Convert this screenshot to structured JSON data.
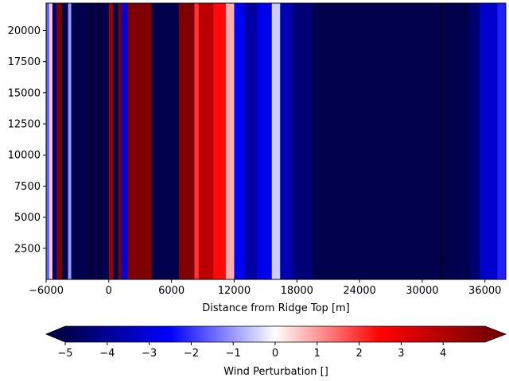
{
  "chart_data": [
    {
      "type": "heatmap",
      "title": "",
      "xlabel": "Distance from Ridge Top [m]",
      "ylabel": "",
      "xlim": [
        -6000,
        38000
      ],
      "ylim": [
        0,
        22200
      ],
      "x_ticks": [
        -6000,
        0,
        6000,
        12000,
        18000,
        24000,
        30000,
        36000
      ],
      "x_tick_labels": [
        "−6000",
        "0",
        "6000",
        "12000",
        "18000",
        "24000",
        "30000",
        "36000"
      ],
      "y_ticks": [
        2500,
        5000,
        7500,
        10000,
        12500,
        15000,
        17500,
        20000
      ],
      "y_tick_labels": [
        "2500",
        "5000",
        "7500",
        "10000",
        "12500",
        "15000",
        "17500",
        "20000"
      ],
      "colormap": "seismic",
      "colormap_stops": [
        "#00004c",
        "#0000ff",
        "#ffffff",
        "#ff0000",
        "#7f0000"
      ],
      "value_range": [
        -5,
        5
      ],
      "pattern": "vertical bands (wind perturbation nearly constant with height)",
      "bands": [
        {
          "x_start": -6000,
          "x_end": -5700,
          "value": -1.5
        },
        {
          "x_start": -5700,
          "x_end": -5400,
          "value": 0.5
        },
        {
          "x_start": -5400,
          "x_end": -5000,
          "value": -4.5
        },
        {
          "x_start": -5000,
          "x_end": -4500,
          "value": 5
        },
        {
          "x_start": -4500,
          "x_end": -3900,
          "value": -5
        },
        {
          "x_start": -3900,
          "x_end": -3600,
          "value": -1
        },
        {
          "x_start": -3600,
          "x_end": -1700,
          "value": -5
        },
        {
          "x_start": -1700,
          "x_end": -1600,
          "value": -6
        },
        {
          "x_start": -1600,
          "x_end": -1000,
          "value": -5
        },
        {
          "x_start": -1000,
          "x_end": -900,
          "value": -6
        },
        {
          "x_start": -900,
          "x_end": 0,
          "value": -5
        },
        {
          "x_start": 0,
          "x_end": 400,
          "value": 4.5
        },
        {
          "x_start": 400,
          "x_end": 900,
          "value": -5
        },
        {
          "x_start": 900,
          "x_end": 1200,
          "value": 5
        },
        {
          "x_start": 1200,
          "x_end": 1800,
          "value": -3
        },
        {
          "x_start": 1800,
          "x_end": 4100,
          "value": 5
        },
        {
          "x_start": 4100,
          "x_end": 6700,
          "value": -5
        },
        {
          "x_start": 6700,
          "x_end": 8200,
          "value": 5
        },
        {
          "x_start": 8200,
          "x_end": 8600,
          "value": 2
        },
        {
          "x_start": 8600,
          "x_end": 10000,
          "value": 3.8
        },
        {
          "x_start": 10000,
          "x_end": 11200,
          "value": 2.4
        },
        {
          "x_start": 11200,
          "x_end": 12000,
          "value": 0.8
        },
        {
          "x_start": 12000,
          "x_end": 13000,
          "value": -2.6
        },
        {
          "x_start": 13000,
          "x_end": 14200,
          "value": -3.8
        },
        {
          "x_start": 14200,
          "x_end": 15600,
          "value": -2.8
        },
        {
          "x_start": 15600,
          "x_end": 16400,
          "value": -0.5
        },
        {
          "x_start": 16400,
          "x_end": 17600,
          "value": -3.6
        },
        {
          "x_start": 17600,
          "x_end": 19500,
          "value": -4.4
        },
        {
          "x_start": 19500,
          "x_end": 34500,
          "value": -5
        },
        {
          "x_start": 34500,
          "x_end": 35500,
          "value": -4.5
        },
        {
          "x_start": 35500,
          "x_end": 37200,
          "value": -3.2
        },
        {
          "x_start": 37200,
          "x_end": 38000,
          "value": -2.2
        }
      ],
      "contour_lines_x": [
        -1700,
        -1000,
        31800
      ],
      "colorbar": {
        "label": "Wind Perturbation []",
        "ticks": [
          -5,
          -4,
          -3,
          -2,
          -1,
          0,
          1,
          2,
          3,
          4
        ],
        "tick_labels": [
          "−5",
          "−4",
          "−3",
          "−2",
          "−1",
          "0",
          "1",
          "2",
          "3",
          "4"
        ],
        "extend": "both",
        "orientation": "horizontal"
      }
    }
  ]
}
